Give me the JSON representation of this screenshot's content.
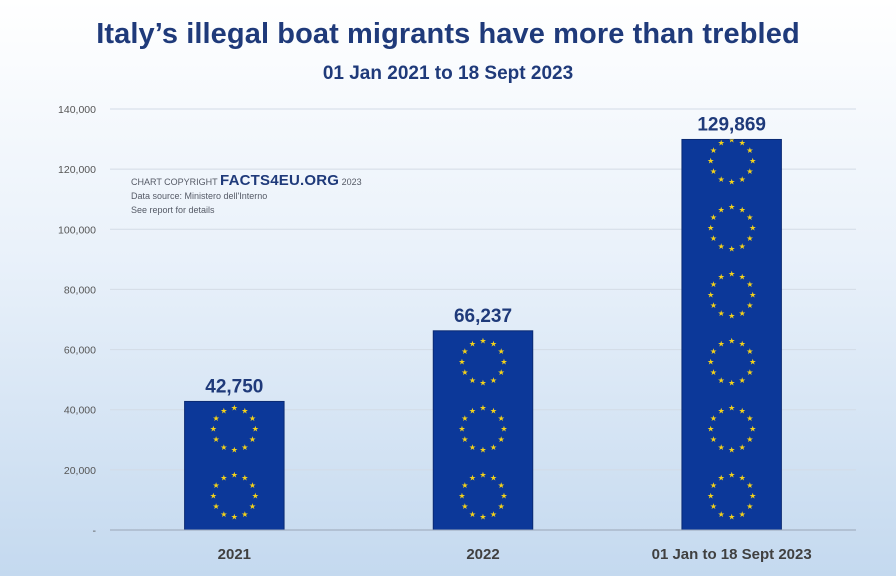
{
  "colors": {
    "bar_fill": "#0c3899",
    "bar_border": "#0a2a73",
    "star": "#f4d21a",
    "title": "#1f3a7a",
    "grid": "#d3dbe6"
  },
  "copyright": {
    "prefix": "CHART COPYRIGHT",
    "brand": "FACTS4EU.ORG",
    "year": "2023",
    "source": "Data source: Ministero dell'Interno",
    "note": "See report for details"
  },
  "chart_data": {
    "type": "bar",
    "title": "Italy’s illegal boat migrants have more than trebled",
    "subtitle": "01 Jan 2021 to 18 Sept 2023",
    "categories": [
      "2021",
      "2022",
      "01 Jan to 18 Sept 2023"
    ],
    "values": [
      42750,
      66237,
      129869
    ],
    "value_labels": [
      "42,750",
      "66,237",
      "129,869"
    ],
    "ylim": [
      0,
      140000
    ],
    "yticks": [
      0,
      20000,
      40000,
      60000,
      80000,
      100000,
      120000,
      140000
    ],
    "ytick_labels": [
      "-",
      "20,000",
      "40,000",
      "60,000",
      "80,000",
      "100,000",
      "120,000",
      "140,000"
    ],
    "xlabel": "",
    "ylabel": "",
    "grid": true,
    "legend": "none",
    "fill_pattern": "EU flag star circles"
  }
}
